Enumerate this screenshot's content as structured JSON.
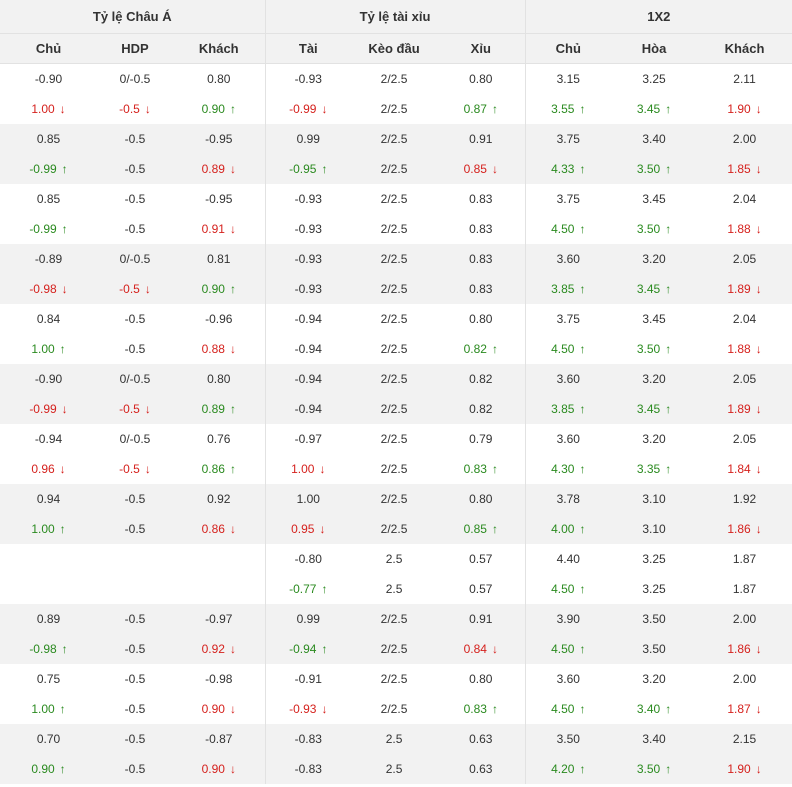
{
  "groups": [
    {
      "label": "Tỷ lệ Châu Á"
    },
    {
      "label": "Tỷ lệ tài xỉu"
    },
    {
      "label": "1X2"
    }
  ],
  "columns": [
    "Chủ",
    "HDP",
    "Khách",
    "Tài",
    "Kèo đầu",
    "Xỉu",
    "Chủ",
    "Hòa",
    "Khách"
  ],
  "arrow_up": "↑",
  "arrow_down": "↓",
  "colors": {
    "up": "#2a8a1f",
    "down": "#d5211d",
    "stripe": "#f2f2f2",
    "border": "#e2e2e2"
  },
  "rows": [
    [
      [
        "-0.90"
      ],
      [
        "0/-0.5"
      ],
      [
        "0.80"
      ],
      [
        "-0.93"
      ],
      [
        "2/2.5"
      ],
      [
        "0.80"
      ],
      [
        "3.15"
      ],
      [
        "3.25"
      ],
      [
        "2.11"
      ]
    ],
    [
      [
        "1.00",
        "down"
      ],
      [
        "-0.5",
        "down"
      ],
      [
        "0.90",
        "up"
      ],
      [
        "-0.99",
        "down"
      ],
      [
        "2/2.5"
      ],
      [
        "0.87",
        "up"
      ],
      [
        "3.55",
        "up"
      ],
      [
        "3.45",
        "up"
      ],
      [
        "1.90",
        "down"
      ]
    ],
    [
      [
        "0.85"
      ],
      [
        "-0.5"
      ],
      [
        "-0.95"
      ],
      [
        "0.99"
      ],
      [
        "2/2.5"
      ],
      [
        "0.91"
      ],
      [
        "3.75"
      ],
      [
        "3.40"
      ],
      [
        "2.00"
      ]
    ],
    [
      [
        "-0.99",
        "up"
      ],
      [
        "-0.5"
      ],
      [
        "0.89",
        "down"
      ],
      [
        "-0.95",
        "up"
      ],
      [
        "2/2.5"
      ],
      [
        "0.85",
        "down"
      ],
      [
        "4.33",
        "up"
      ],
      [
        "3.50",
        "up"
      ],
      [
        "1.85",
        "down"
      ]
    ],
    [
      [
        "0.85"
      ],
      [
        "-0.5"
      ],
      [
        "-0.95"
      ],
      [
        "-0.93"
      ],
      [
        "2/2.5"
      ],
      [
        "0.83"
      ],
      [
        "3.75"
      ],
      [
        "3.45"
      ],
      [
        "2.04"
      ]
    ],
    [
      [
        "-0.99",
        "up"
      ],
      [
        "-0.5"
      ],
      [
        "0.91",
        "down"
      ],
      [
        "-0.93"
      ],
      [
        "2/2.5"
      ],
      [
        "0.83"
      ],
      [
        "4.50",
        "up"
      ],
      [
        "3.50",
        "up"
      ],
      [
        "1.88",
        "down"
      ]
    ],
    [
      [
        "-0.89"
      ],
      [
        "0/-0.5"
      ],
      [
        "0.81"
      ],
      [
        "-0.93"
      ],
      [
        "2/2.5"
      ],
      [
        "0.83"
      ],
      [
        "3.60"
      ],
      [
        "3.20"
      ],
      [
        "2.05"
      ]
    ],
    [
      [
        "-0.98",
        "down"
      ],
      [
        "-0.5",
        "down"
      ],
      [
        "0.90",
        "up"
      ],
      [
        "-0.93"
      ],
      [
        "2/2.5"
      ],
      [
        "0.83"
      ],
      [
        "3.85",
        "up"
      ],
      [
        "3.45",
        "up"
      ],
      [
        "1.89",
        "down"
      ]
    ],
    [
      [
        "0.84"
      ],
      [
        "-0.5"
      ],
      [
        "-0.96"
      ],
      [
        "-0.94"
      ],
      [
        "2/2.5"
      ],
      [
        "0.80"
      ],
      [
        "3.75"
      ],
      [
        "3.45"
      ],
      [
        "2.04"
      ]
    ],
    [
      [
        "1.00",
        "up"
      ],
      [
        "-0.5"
      ],
      [
        "0.88",
        "down"
      ],
      [
        "-0.94"
      ],
      [
        "2/2.5"
      ],
      [
        "0.82",
        "up"
      ],
      [
        "4.50",
        "up"
      ],
      [
        "3.50",
        "up"
      ],
      [
        "1.88",
        "down"
      ]
    ],
    [
      [
        "-0.90"
      ],
      [
        "0/-0.5"
      ],
      [
        "0.80"
      ],
      [
        "-0.94"
      ],
      [
        "2/2.5"
      ],
      [
        "0.82"
      ],
      [
        "3.60"
      ],
      [
        "3.20"
      ],
      [
        "2.05"
      ]
    ],
    [
      [
        "-0.99",
        "down"
      ],
      [
        "-0.5",
        "down"
      ],
      [
        "0.89",
        "up"
      ],
      [
        "-0.94"
      ],
      [
        "2/2.5"
      ],
      [
        "0.82"
      ],
      [
        "3.85",
        "up"
      ],
      [
        "3.45",
        "up"
      ],
      [
        "1.89",
        "down"
      ]
    ],
    [
      [
        "-0.94"
      ],
      [
        "0/-0.5"
      ],
      [
        "0.76"
      ],
      [
        "-0.97"
      ],
      [
        "2/2.5"
      ],
      [
        "0.79"
      ],
      [
        "3.60"
      ],
      [
        "3.20"
      ],
      [
        "2.05"
      ]
    ],
    [
      [
        "0.96",
        "down"
      ],
      [
        "-0.5",
        "down"
      ],
      [
        "0.86",
        "up"
      ],
      [
        "1.00",
        "down"
      ],
      [
        "2/2.5"
      ],
      [
        "0.83",
        "up"
      ],
      [
        "4.30",
        "up"
      ],
      [
        "3.35",
        "up"
      ],
      [
        "1.84",
        "down"
      ]
    ],
    [
      [
        "0.94"
      ],
      [
        "-0.5"
      ],
      [
        "0.92"
      ],
      [
        "1.00"
      ],
      [
        "2/2.5"
      ],
      [
        "0.80"
      ],
      [
        "3.78"
      ],
      [
        "3.10"
      ],
      [
        "1.92"
      ]
    ],
    [
      [
        "1.00",
        "up"
      ],
      [
        "-0.5"
      ],
      [
        "0.86",
        "down"
      ],
      [
        "0.95",
        "down"
      ],
      [
        "2/2.5"
      ],
      [
        "0.85",
        "up"
      ],
      [
        "4.00",
        "up"
      ],
      [
        "3.10"
      ],
      [
        "1.86",
        "down"
      ]
    ],
    [
      [
        ""
      ],
      [
        ""
      ],
      [
        ""
      ],
      [
        "-0.80"
      ],
      [
        "2.5"
      ],
      [
        "0.57"
      ],
      [
        "4.40"
      ],
      [
        "3.25"
      ],
      [
        "1.87"
      ]
    ],
    [
      [
        ""
      ],
      [
        ""
      ],
      [
        ""
      ],
      [
        "-0.77",
        "up"
      ],
      [
        "2.5"
      ],
      [
        "0.57"
      ],
      [
        "4.50",
        "up"
      ],
      [
        "3.25"
      ],
      [
        "1.87"
      ]
    ],
    [
      [
        "0.89"
      ],
      [
        "-0.5"
      ],
      [
        "-0.97"
      ],
      [
        "0.99"
      ],
      [
        "2/2.5"
      ],
      [
        "0.91"
      ],
      [
        "3.90"
      ],
      [
        "3.50"
      ],
      [
        "2.00"
      ]
    ],
    [
      [
        "-0.98",
        "up"
      ],
      [
        "-0.5"
      ],
      [
        "0.92",
        "down"
      ],
      [
        "-0.94",
        "up"
      ],
      [
        "2/2.5"
      ],
      [
        "0.84",
        "down"
      ],
      [
        "4.50",
        "up"
      ],
      [
        "3.50"
      ],
      [
        "1.86",
        "down"
      ]
    ],
    [
      [
        "0.75"
      ],
      [
        "-0.5"
      ],
      [
        "-0.98"
      ],
      [
        "-0.91"
      ],
      [
        "2/2.5"
      ],
      [
        "0.80"
      ],
      [
        "3.60"
      ],
      [
        "3.20"
      ],
      [
        "2.00"
      ]
    ],
    [
      [
        "1.00",
        "up"
      ],
      [
        "-0.5"
      ],
      [
        "0.90",
        "down"
      ],
      [
        "-0.93",
        "down"
      ],
      [
        "2/2.5"
      ],
      [
        "0.83",
        "up"
      ],
      [
        "4.50",
        "up"
      ],
      [
        "3.40",
        "up"
      ],
      [
        "1.87",
        "down"
      ]
    ],
    [
      [
        "0.70"
      ],
      [
        "-0.5"
      ],
      [
        "-0.87"
      ],
      [
        "-0.83"
      ],
      [
        "2.5"
      ],
      [
        "0.63"
      ],
      [
        "3.50"
      ],
      [
        "3.40"
      ],
      [
        "2.15"
      ]
    ],
    [
      [
        "0.90",
        "up"
      ],
      [
        "-0.5"
      ],
      [
        "0.90",
        "down"
      ],
      [
        "-0.83"
      ],
      [
        "2.5"
      ],
      [
        "0.63"
      ],
      [
        "4.20",
        "up"
      ],
      [
        "3.50",
        "up"
      ],
      [
        "1.90",
        "down"
      ]
    ]
  ]
}
